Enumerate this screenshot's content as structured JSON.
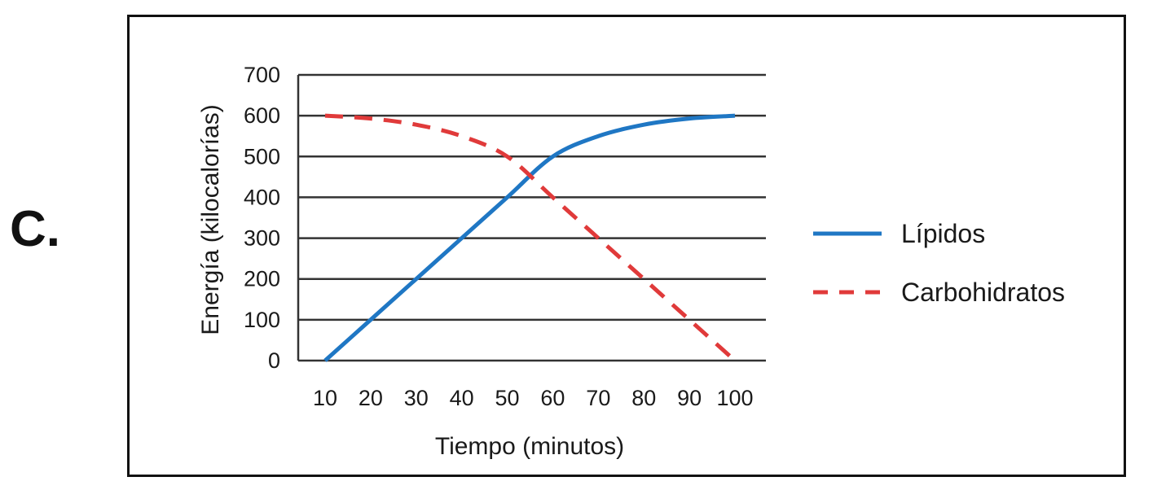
{
  "figure": {
    "option_label": "C."
  },
  "chart_data": {
    "type": "line",
    "title": "",
    "xlabel": "Tiempo (minutos)",
    "ylabel": "Energía (kilocalorías)",
    "x": [
      10,
      20,
      30,
      40,
      50,
      60,
      70,
      80,
      90,
      100
    ],
    "xticks": [
      "10",
      "20",
      "30",
      "40",
      "50",
      "60",
      "70",
      "80",
      "90",
      "100"
    ],
    "yticks": [
      "0",
      "100",
      "200",
      "300",
      "400",
      "500",
      "600",
      "700"
    ],
    "xlim": [
      10,
      100
    ],
    "ylim": [
      0,
      700
    ],
    "grid": "horizontal",
    "legend_position": "right",
    "series": [
      {
        "name": "Lípidos",
        "style": "solid",
        "color": "#1f77c4",
        "values": [
          0,
          100,
          200,
          300,
          400,
          500,
          550,
          578,
          593,
          600
        ]
      },
      {
        "name": "Carbohidratos",
        "style": "dashed",
        "color": "#e03a3a",
        "values": [
          600,
          593,
          578,
          550,
          500,
          400,
          300,
          200,
          100,
          0
        ]
      }
    ]
  }
}
